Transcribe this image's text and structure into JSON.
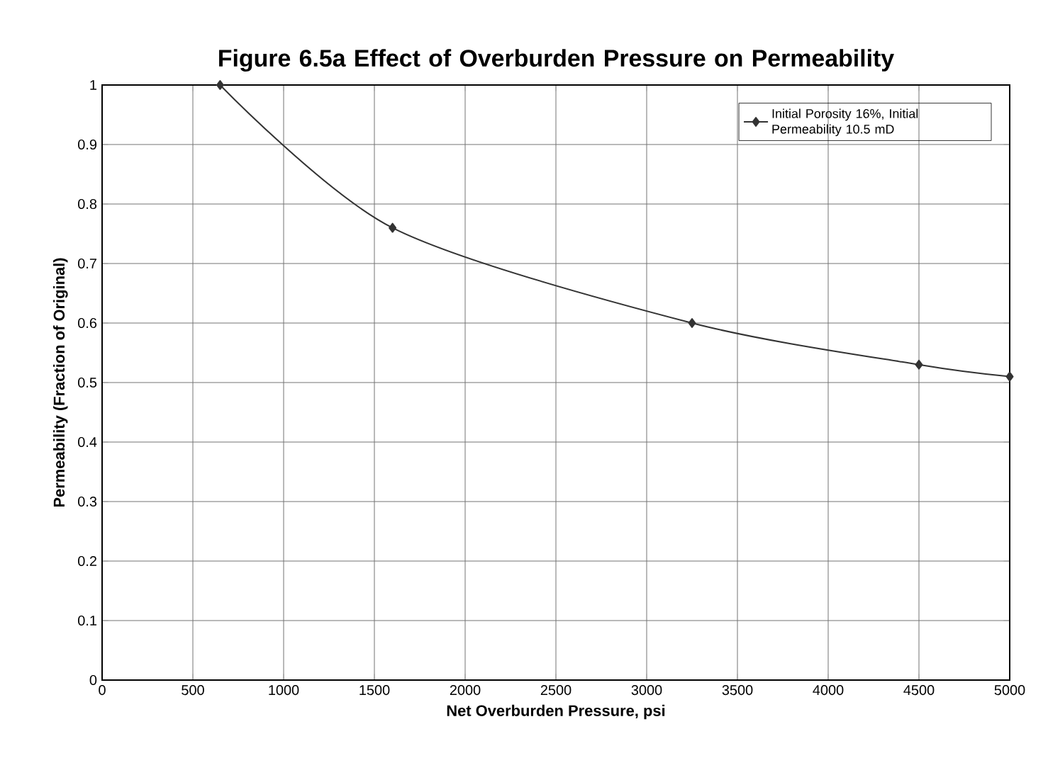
{
  "chart_data": {
    "type": "line",
    "title": "Figure 6.5a  Effect of Overburden Pressure on Permeability",
    "xlabel": "Net Overburden Pressure, psi",
    "ylabel": "Permeability (Fraction of Original)",
    "series": [
      {
        "name": "Initial Porosity 16%, Initial Permeability 10.5 mD",
        "color": "#333333",
        "x": [
          650,
          1600,
          3250,
          4500,
          5000
        ],
        "values": [
          1.0,
          0.76,
          0.6,
          0.53,
          0.51
        ]
      }
    ],
    "xlim": [
      0,
      5000
    ],
    "ylim": [
      0,
      1
    ],
    "xticks": [
      0,
      500,
      1000,
      1500,
      2000,
      2500,
      3000,
      3500,
      4000,
      4500,
      5000
    ],
    "yticks": [
      0,
      0.1,
      0.2,
      0.3,
      0.4,
      0.5,
      0.6,
      0.7,
      0.8,
      0.9,
      1
    ],
    "grid": true,
    "legend": "top right",
    "marker": "diamond",
    "line_style": "solid"
  }
}
